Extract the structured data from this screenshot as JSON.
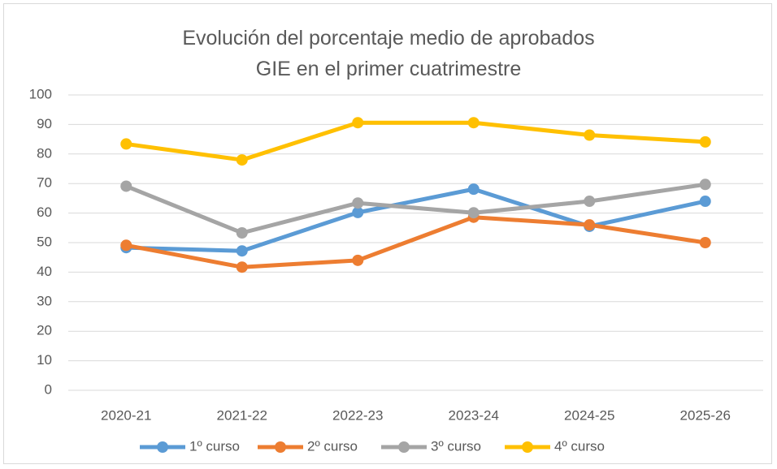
{
  "chart_data": {
    "type": "line",
    "title": "Evolución del porcentaje medio de aprobados GIE en el primer cuatrimestre",
    "categories": [
      "2020-21",
      "2021-22",
      "2022-23",
      "2023-24",
      "2024-25",
      "2025-26"
    ],
    "series": [
      {
        "name": "1º curso",
        "color": "#5b9bd5",
        "values": [
          48.3,
          47.2,
          60.2,
          68.1,
          55.5,
          64
        ]
      },
      {
        "name": "2º curso",
        "color": "#ed7d31",
        "values": [
          49.1,
          41.7,
          44,
          58.6,
          56,
          50
        ]
      },
      {
        "name": "3º curso",
        "color": "#a5a5a5",
        "values": [
          69.1,
          53.3,
          63.4,
          60.1,
          64,
          69.7
        ]
      },
      {
        "name": "4º curso",
        "color": "#ffc000",
        "values": [
          83.4,
          78,
          90.6,
          90.6,
          86.4,
          84.1
        ]
      }
    ],
    "ylim": [
      0,
      100
    ],
    "yticks": [
      0,
      10,
      20,
      30,
      40,
      50,
      60,
      70,
      80,
      90,
      100
    ],
    "grid": true,
    "legend": "bottom"
  }
}
